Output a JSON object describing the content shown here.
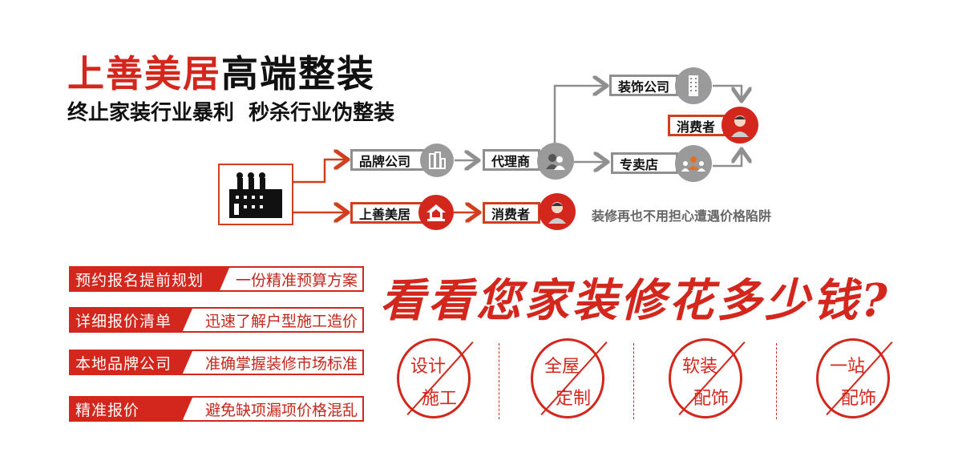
{
  "header": {
    "brand": "上善美居",
    "title_suffix": "高端整装",
    "slogan": "终止家装行业暴利  秒杀行业伪整装"
  },
  "diagram": {
    "factory_icon": "factory-icon",
    "nodes": {
      "brand_company": {
        "label": "品牌公司",
        "icon": "buildings-icon"
      },
      "agent": {
        "label": "代理商",
        "icon": "people-icon"
      },
      "decoration_company": {
        "label": "装饰公司",
        "icon": "tower-icon"
      },
      "consumer_top": {
        "label": "消费者",
        "icon": "person-icon"
      },
      "store": {
        "label": "专卖店",
        "icon": "group-icon"
      },
      "shanshan": {
        "label": "上善美居",
        "icon": "house-icon"
      },
      "consumer_bottom": {
        "label": "消费者",
        "icon": "person-icon"
      }
    },
    "note": "装修再也不用担心遭遇价格陷阱"
  },
  "features": [
    {
      "label": "预约报名提前规划",
      "value": "一份精准预算方案"
    },
    {
      "label": "详细报价清单",
      "value": "迅速了解户型施工造价"
    },
    {
      "label": "本地品牌公司",
      "value": "准确掌握装修市场标准"
    },
    {
      "label": "精准报价",
      "value": "避免缺项漏项价格混乱"
    }
  ],
  "headline": "看看您家装修花多少钱?",
  "stamps": [
    {
      "top": "设计",
      "bottom": "施工"
    },
    {
      "top": "全屋",
      "bottom": "定制"
    },
    {
      "top": "软装",
      "bottom": "配饰"
    },
    {
      "top": "一站",
      "bottom": "配饰"
    }
  ],
  "colors": {
    "accent": "#d3261c",
    "gray": "#8f8f8f",
    "text": "#111111"
  }
}
